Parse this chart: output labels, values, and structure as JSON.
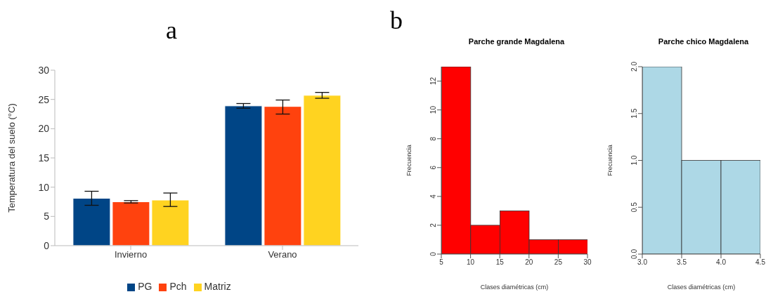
{
  "chart_data": [
    {
      "type": "bar",
      "annotations": [
        "a"
      ],
      "ylabel": "Temperatura del suelo (°C)",
      "categories": [
        "Invierno",
        "Verano"
      ],
      "series": [
        {
          "name": "PG",
          "color": "#004586",
          "values": [
            8.1,
            23.9
          ],
          "errors": [
            [
              6.9,
              9.3
            ],
            [
              23.5,
              24.3
            ]
          ]
        },
        {
          "name": "Pch",
          "color": "#ff420e",
          "values": [
            7.5,
            23.8
          ],
          "errors": [
            [
              7.3,
              7.7
            ],
            [
              22.5,
              24.9
            ]
          ]
        },
        {
          "name": "Matriz",
          "color": "#ffd320",
          "values": [
            7.8,
            25.7
          ],
          "errors": [
            [
              6.7,
              9.0
            ],
            [
              25.2,
              26.2
            ]
          ]
        }
      ],
      "ylim": [
        0,
        30
      ],
      "yticks": [
        0,
        5,
        10,
        15,
        20,
        25,
        30
      ],
      "grid": false,
      "legend": "bottom"
    },
    {
      "type": "histogram",
      "annotations": [
        "b"
      ],
      "title": "Parche grande Magdalena",
      "xlabel": "Clases diamétricas (cm)",
      "ylabel": "Frecuencia",
      "bins": [
        5,
        10,
        15,
        20,
        25,
        30
      ],
      "values": [
        13,
        2,
        3,
        1,
        1
      ],
      "color": "#ff0000",
      "xlim": [
        5,
        30
      ],
      "xticks": [
        5,
        10,
        15,
        20,
        25,
        30
      ],
      "ylim": [
        0,
        13
      ],
      "yticks": [
        0,
        2,
        4,
        6,
        8,
        10,
        12
      ],
      "grid": false
    },
    {
      "type": "histogram",
      "title": "Parche chico Magdalena",
      "xlabel": "Clases diamétricas (cm)",
      "ylabel": "Frecuencia",
      "bins": [
        3.0,
        3.5,
        4.0,
        4.5
      ],
      "values": [
        2,
        1,
        1
      ],
      "color": "#add8e6",
      "xlim": [
        3.0,
        4.5
      ],
      "xticks": [
        {
          "value": 3,
          "label": "3.0"
        },
        3.5,
        {
          "value": 4,
          "label": "4.0"
        },
        4.5
      ],
      "ylim": [
        0,
        2
      ],
      "yticks": [
        {
          "value": 0,
          "label": "0.0"
        },
        0.5,
        {
          "value": 1,
          "label": "1.0"
        },
        1.5,
        {
          "value": 2,
          "label": "2.0"
        }
      ],
      "grid": false
    }
  ]
}
